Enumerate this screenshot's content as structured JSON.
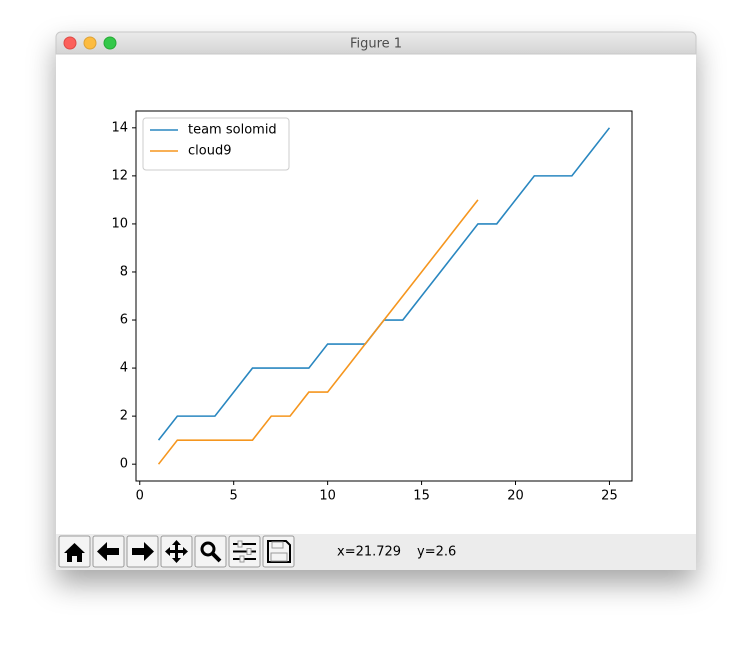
{
  "window": {
    "title": "Figure 1"
  },
  "status": {
    "x": "x=21.729",
    "y": "y=2.6"
  },
  "chart_data": {
    "type": "line",
    "series": [
      {
        "name": "team solomid",
        "color": "#2a87c0",
        "x": [
          1,
          2,
          3,
          4,
          5,
          6,
          7,
          8,
          9,
          10,
          11,
          12,
          13,
          14,
          15,
          16,
          17,
          18,
          19,
          20,
          21,
          22,
          23,
          24,
          25
        ],
        "values": [
          1,
          2,
          2,
          2,
          3,
          4,
          4,
          4,
          4,
          5,
          5,
          5,
          6,
          6,
          7,
          8,
          9,
          10,
          10,
          11,
          12,
          12,
          12,
          13,
          14
        ]
      },
      {
        "name": "cloud9",
        "color": "#f5961f",
        "x": [
          1,
          2,
          3,
          4,
          5,
          6,
          7,
          8,
          9,
          10,
          11,
          12,
          13,
          14,
          15,
          16,
          17,
          18
        ],
        "values": [
          0,
          1,
          1,
          1,
          1,
          1,
          2,
          2,
          3,
          3,
          4,
          5,
          6,
          7,
          8,
          9,
          10,
          11
        ]
      }
    ],
    "xlim": [
      -0.2,
      26.2
    ],
    "xticks": [
      0,
      5,
      10,
      15,
      20,
      25
    ],
    "ylim": [
      -0.7,
      14.7
    ],
    "yticks": [
      0,
      2,
      4,
      6,
      8,
      10,
      12,
      14
    ],
    "legend": "upper left"
  }
}
